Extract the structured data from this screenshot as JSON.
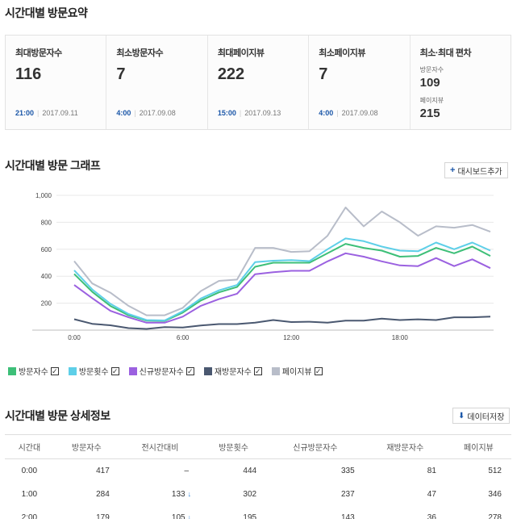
{
  "sections": {
    "summary_title": "시간대별 방문요약",
    "graph_title": "시간대별 방문 그래프",
    "detail_title": "시간대별 방문 상세정보"
  },
  "summary": {
    "cards": [
      {
        "label": "최대방문자수",
        "value": "116",
        "hour": "21:00",
        "date": "2017.09.11"
      },
      {
        "label": "최소방문자수",
        "value": "7",
        "hour": "4:00",
        "date": "2017.09.08"
      },
      {
        "label": "최대페이지뷰",
        "value": "222",
        "hour": "15:00",
        "date": "2017.09.13"
      },
      {
        "label": "최소페이지뷰",
        "value": "7",
        "hour": "4:00",
        "date": "2017.09.08"
      }
    ],
    "deviation": {
      "label": "최소·최대 편차",
      "visitors_label": "방문자수",
      "visitors_value": "109",
      "pageviews_label": "페이지뷰",
      "pageviews_value": "215"
    }
  },
  "buttons": {
    "add_dashboard": "대시보드추가",
    "save_data": "데이터저장"
  },
  "colors": {
    "visitors": "#3dbf78",
    "visits": "#5ecfe8",
    "new_visitors": "#9b61e0",
    "returning": "#4a5870",
    "pageviews": "#b8bdc9"
  },
  "chart_data": {
    "type": "line",
    "x": [
      0,
      1,
      2,
      3,
      4,
      5,
      6,
      7,
      8,
      9,
      10,
      11,
      12,
      13,
      14,
      15,
      16,
      17,
      18,
      19,
      20,
      21,
      22,
      23
    ],
    "xticks": [
      "0:00",
      "6:00",
      "12:00",
      "18:00"
    ],
    "yticks": [
      "200",
      "400",
      "600",
      "800",
      "1,000"
    ],
    "ylim": [
      0,
      1000
    ],
    "grid": true,
    "series": [
      {
        "name": "방문자수",
        "key": "visitors",
        "values": [
          417,
          284,
          179,
          110,
          70,
          68,
          130,
          220,
          280,
          320,
          470,
          500,
          500,
          500,
          570,
          640,
          610,
          590,
          545,
          550,
          610,
          570,
          620,
          550
        ]
      },
      {
        "name": "방문횟수",
        "key": "visits",
        "values": [
          444,
          302,
          195,
          120,
          75,
          72,
          140,
          235,
          295,
          335,
          505,
          515,
          520,
          512,
          600,
          680,
          660,
          620,
          590,
          585,
          650,
          600,
          650,
          590
        ]
      },
      {
        "name": "신규방문자수",
        "key": "new_visitors",
        "values": [
          335,
          237,
          143,
          95,
          55,
          55,
          100,
          180,
          230,
          270,
          415,
          430,
          440,
          440,
          510,
          570,
          545,
          510,
          480,
          475,
          535,
          475,
          525,
          460
        ]
      },
      {
        "name": "재방문자수",
        "key": "returning",
        "values": [
          81,
          47,
          36,
          15,
          9,
          22,
          20,
          35,
          45,
          45,
          55,
          75,
          60,
          62,
          55,
          70,
          70,
          85,
          75,
          80,
          75,
          95,
          95,
          100
        ]
      },
      {
        "name": "페이지뷰",
        "key": "pageviews",
        "values": [
          512,
          346,
          278,
          180,
          110,
          110,
          165,
          290,
          365,
          375,
          610,
          610,
          580,
          585,
          700,
          910,
          770,
          880,
          800,
          700,
          770,
          760,
          780,
          730
        ]
      }
    ]
  },
  "legend_check": "✓",
  "table": {
    "headers": [
      "시간대",
      "방문자수",
      "전시간대비",
      "방문횟수",
      "신규방문자수",
      "재방문자수",
      "페이지뷰"
    ],
    "rows": [
      {
        "hour": "0:00",
        "visitors": "417",
        "change": "–",
        "change_arrow": "",
        "visits": "444",
        "new": "335",
        "returning": "81",
        "pageviews": "512"
      },
      {
        "hour": "1:00",
        "visitors": "284",
        "change": "133",
        "change_arrow": "↓",
        "visits": "302",
        "new": "237",
        "returning": "47",
        "pageviews": "346"
      },
      {
        "hour": "2:00",
        "visitors": "179",
        "change": "105",
        "change_arrow": "↓",
        "visits": "195",
        "new": "143",
        "returning": "36",
        "pageviews": "278"
      }
    ]
  }
}
